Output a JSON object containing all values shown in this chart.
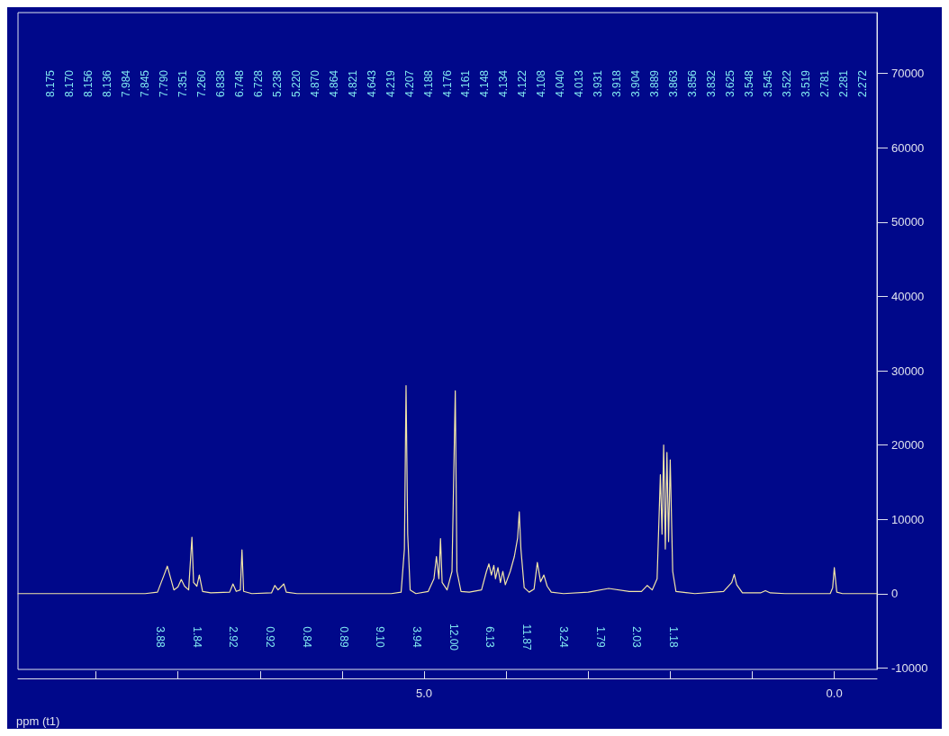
{
  "chart_data": {
    "type": "line",
    "xlabel": "ppm (t1)",
    "xlim": [
      9.95,
      -0.52
    ],
    "ylim": [
      -10200,
      78200
    ],
    "xticks": [
      {
        "value": 9,
        "label": null
      },
      {
        "value": 8,
        "label": null
      },
      {
        "value": 7,
        "label": null
      },
      {
        "value": 6,
        "label": null
      },
      {
        "value": 5,
        "label": "5.0"
      },
      {
        "value": 4,
        "label": null
      },
      {
        "value": 3,
        "label": null
      },
      {
        "value": 2,
        "label": null
      },
      {
        "value": 1,
        "label": null
      },
      {
        "value": 0,
        "label": "0.0"
      }
    ],
    "yticks": [
      -10000,
      0,
      10000,
      20000,
      30000,
      40000,
      50000,
      60000,
      70000
    ],
    "marker": "none",
    "line_style": "solid",
    "series": [
      {
        "color": "#f2e6a8",
        "x": [
          9.95,
          8.4,
          8.25,
          8.17,
          8.13,
          8.1,
          8.05,
          8.0,
          7.96,
          7.92,
          7.87,
          7.83,
          7.81,
          7.77,
          7.74,
          7.7,
          7.6,
          7.37,
          7.33,
          7.29,
          7.24,
          7.22,
          7.2,
          7.1,
          6.86,
          6.82,
          6.78,
          6.71,
          6.68,
          6.55,
          5.4,
          5.28,
          5.24,
          5.22,
          5.2,
          5.17,
          5.1,
          4.95,
          4.88,
          4.85,
          4.82,
          4.8,
          4.78,
          4.72,
          4.66,
          4.62,
          4.6,
          4.55,
          4.45,
          4.3,
          4.24,
          4.21,
          4.18,
          4.15,
          4.13,
          4.1,
          4.07,
          4.04,
          4.01,
          3.95,
          3.9,
          3.86,
          3.84,
          3.82,
          3.78,
          3.72,
          3.66,
          3.62,
          3.58,
          3.54,
          3.5,
          3.45,
          3.3,
          3.0,
          2.75,
          2.5,
          2.35,
          2.28,
          2.22,
          2.16,
          2.12,
          2.1,
          2.08,
          2.06,
          2.04,
          2.02,
          2.0,
          1.97,
          1.93,
          1.7,
          1.35,
          1.25,
          1.22,
          1.19,
          1.12,
          0.9,
          0.84,
          0.78,
          0.6,
          0.05,
          0.02,
          0.0,
          -0.03,
          -0.1,
          -0.52
        ],
        "values": [
          0,
          0,
          200,
          2500,
          3700,
          2500,
          500,
          900,
          1900,
          1000,
          500,
          7600,
          1500,
          1000,
          2500,
          300,
          100,
          200,
          1300,
          300,
          500,
          5900,
          300,
          0,
          100,
          1100,
          500,
          1300,
          200,
          0,
          0,
          200,
          6000,
          28000,
          8000,
          500,
          0,
          300,
          2000,
          5000,
          2000,
          7400,
          1500,
          500,
          3000,
          27300,
          3000,
          300,
          200,
          500,
          3000,
          4000,
          2500,
          3800,
          2000,
          3500,
          1500,
          3000,
          1200,
          3000,
          5000,
          7500,
          11000,
          6000,
          800,
          200,
          600,
          4200,
          1600,
          2500,
          1000,
          200,
          0,
          200,
          700,
          300,
          300,
          1100,
          500,
          2000,
          16000,
          8000,
          20000,
          6000,
          19000,
          7000,
          18000,
          3000,
          300,
          0,
          300,
          1500,
          2600,
          1200,
          100,
          100,
          400,
          100,
          0,
          0,
          800,
          3500,
          200,
          0,
          0
        ]
      }
    ],
    "annotations": [
      "8.175",
      "8.170",
      "8.156",
      "8.136",
      "7.984",
      "7.845",
      "7.790",
      "7.351",
      "7.260",
      "6.838",
      "6.748",
      "6.728",
      "5.238",
      "5.220",
      "4.870",
      "4.864",
      "4.821",
      "4.643",
      "4.219",
      "4.207",
      "4.188",
      "4.176",
      "4.161",
      "4.148",
      "4.134",
      "4.122",
      "4.108",
      "4.040",
      "4.013",
      "3.931",
      "3.918",
      "3.904",
      "3.889",
      "3.863",
      "3.856",
      "3.832",
      "3.625",
      "3.548",
      "3.545",
      "3.522",
      "3.519",
      "2.781",
      "2.281",
      "2.272",
      "3.88",
      "1.84",
      "2.92",
      "0.92",
      "0.84",
      "0.89",
      "9.10",
      "3.94",
      "12.00",
      "6.13",
      "11.87",
      "3.24",
      "1.79",
      "2.03",
      "1.18"
    ]
  }
}
